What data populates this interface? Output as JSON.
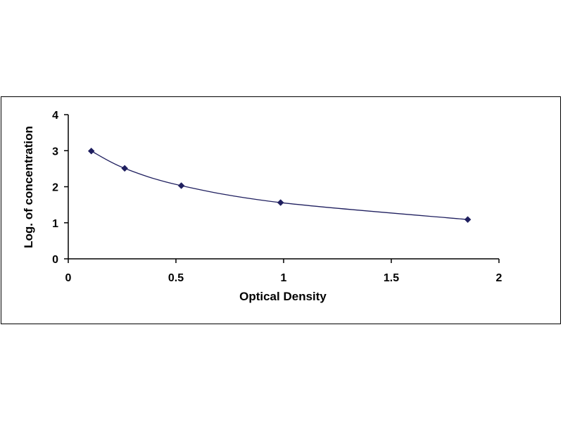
{
  "chart_data": {
    "type": "scatter",
    "title": "",
    "xlabel": "Optical Density",
    "ylabel": "Log. of concentration",
    "xlim": [
      0,
      2
    ],
    "ylim": [
      0,
      4
    ],
    "x_ticks": [
      "0",
      "0.5",
      "1",
      "1.5",
      "2"
    ],
    "y_ticks": [
      "0",
      "1",
      "2",
      "3",
      "4"
    ],
    "grid": false,
    "legend": "none",
    "trendline": "smooth curve through points",
    "series": [
      {
        "x": [
          0.107,
          0.262,
          0.525,
          0.986,
          1.855
        ],
        "y": [
          2.99,
          2.51,
          2.03,
          1.56,
          1.09
        ],
        "color": "#1f1f5f"
      }
    ]
  }
}
